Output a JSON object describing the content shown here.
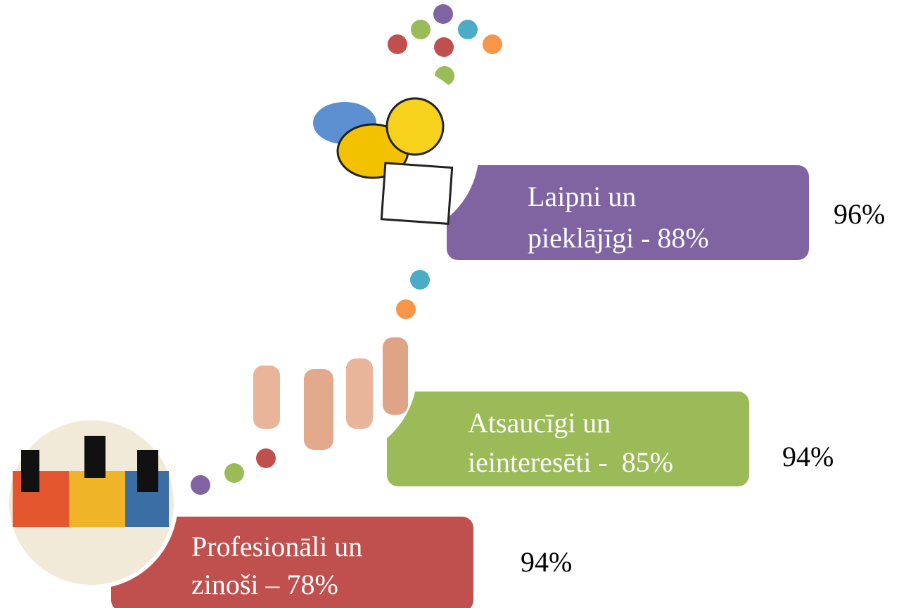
{
  "items": [
    {
      "label_lines": [
        "Laipni un",
        "pieklājīgi - 88%"
      ],
      "value": "96%"
    },
    {
      "label_lines": [
        "Atsaucīgi un",
        "ieinteresēti -  85%"
      ],
      "value": "94%"
    },
    {
      "label_lines": [
        "Profesionāli un",
        "zinoši – 78%"
      ],
      "value": "94%"
    }
  ]
}
